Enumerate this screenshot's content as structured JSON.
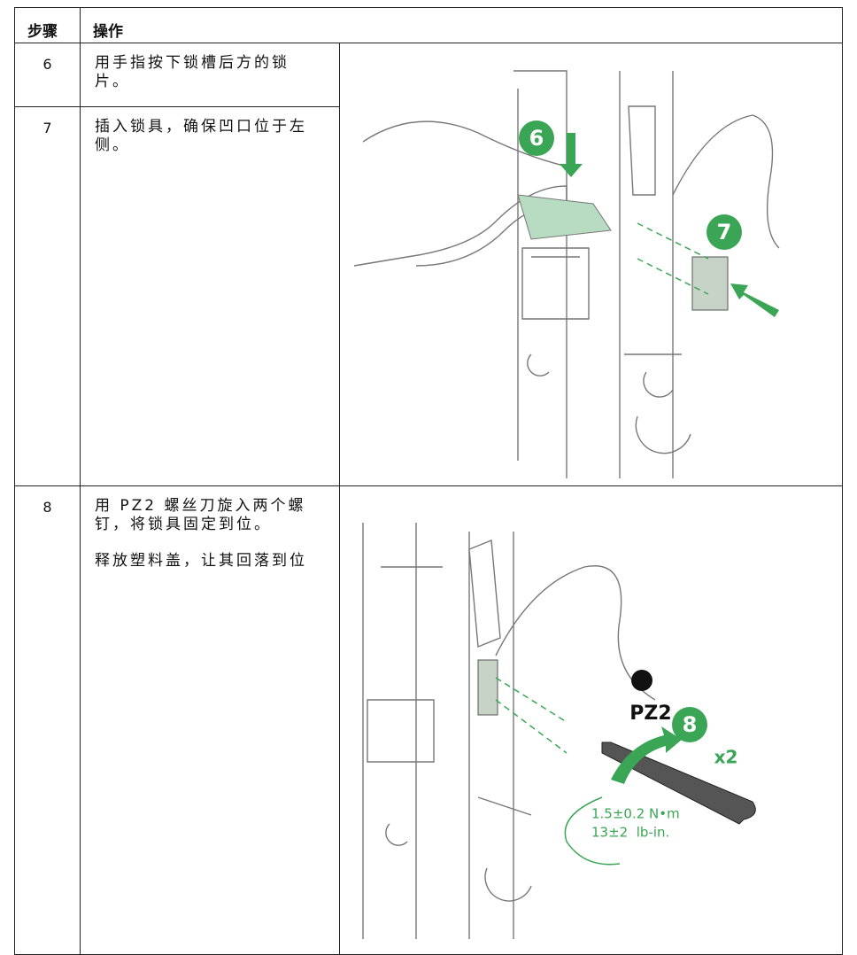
{
  "table": {
    "header": [
      "步骤",
      "操作"
    ],
    "rows": [
      {
        "step": "6",
        "text": [
          "用手指按下锁槽后方的锁片。"
        ]
      },
      {
        "step": "7",
        "text": [
          "插入锁具，确保凹口位于左侧。"
        ]
      },
      {
        "step": "8",
        "text": [
          "用 PZ2 螺丝刀旋入两个螺钉，将锁具固定到位。",
          "释放塑料盖，让其回落到位"
        ]
      }
    ]
  },
  "figures": [
    {
      "callouts": [
        "6",
        "7"
      ]
    },
    {
      "callouts": [
        "8"
      ],
      "tool": "PZ2",
      "quantity": "x2",
      "torque": [
        "1.5±0.2 N•m",
        "13±2  lb-in."
      ]
    }
  ]
}
